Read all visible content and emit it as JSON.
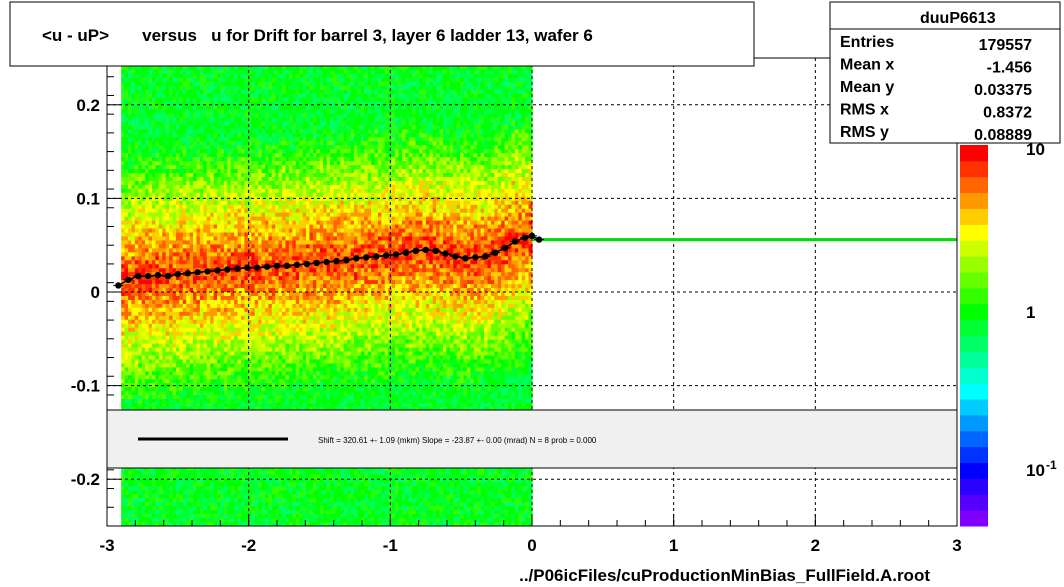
{
  "title": "<u - uP>       versus   u for Drift for barrel 3, layer 6 ladder 13, wafer 6",
  "footer": "../P06icFiles/cuProductionMinBias_FullField.A.root",
  "stats": {
    "name": "duuP6613",
    "rows": [
      {
        "label": "Entries",
        "value": "179557"
      },
      {
        "label": "Mean x",
        "value": "-1.456"
      },
      {
        "label": "Mean y",
        "value": "0.03375"
      },
      {
        "label": "RMS x",
        "value": "0.8372"
      },
      {
        "label": "RMS y",
        "value": "0.08889"
      }
    ]
  },
  "fit_text": "Shift =   320.61 +- 1.09 (mkm) Slope =   -23.87 +- 0.00 (mrad)  N = 8 prob = 0.000",
  "colors": {
    "profile": "#000000",
    "fit_line": "#00dd00",
    "legend_line": "#000000",
    "legend_box": "#f0f0f0",
    "palette": [
      "#7f00ff",
      "#5500ff",
      "#2a00ff",
      "#0000ff",
      "#0033ff",
      "#0066ff",
      "#0099ff",
      "#00ccff",
      "#00ffff",
      "#00ffcc",
      "#00ff99",
      "#00ff66",
      "#00ff33",
      "#00ff00",
      "#33ff00",
      "#66ff00",
      "#99ff00",
      "#ccff00",
      "#ffff00",
      "#ffcc00",
      "#ff9900",
      "#ff6600",
      "#ff3300",
      "#ff0000"
    ]
  },
  "chart_data": {
    "type": "heatmap",
    "title": "<u - uP>       versus   u for Drift for barrel 3, layer 6 ladder 13, wafer 6",
    "xlabel": "../P06icFiles/cuProductionMinBias_FullField.A.root",
    "ylabel": "",
    "xlim": [
      -3,
      3
    ],
    "ylim": [
      -0.25,
      0.25
    ],
    "x_ticks": [
      -3,
      -2,
      -1,
      0,
      1,
      2,
      3
    ],
    "y_ticks": [
      -0.2,
      -0.1,
      0,
      0.1,
      0.2
    ],
    "x_tick_labels": [
      "-3",
      "-2",
      "-1",
      "0",
      "1",
      "2",
      "3"
    ],
    "y_tick_labels": [
      "-0.2",
      "-0.1",
      "0",
      "0.1",
      "0.2"
    ],
    "grid": true,
    "log_z": true,
    "z_tick_labels": [
      "10",
      "1",
      "10"
    ],
    "z_tick_exponents": [
      "",
      "",
      "-1"
    ],
    "data_x_range": [
      -2.9,
      0.0
    ],
    "profile": {
      "x": [
        -2.92,
        -2.85,
        -2.78,
        -2.71,
        -2.64,
        -2.57,
        -2.5,
        -2.43,
        -2.36,
        -2.29,
        -2.22,
        -2.15,
        -2.08,
        -2.01,
        -1.94,
        -1.87,
        -1.8,
        -1.73,
        -1.66,
        -1.59,
        -1.52,
        -1.45,
        -1.38,
        -1.31,
        -1.24,
        -1.17,
        -1.1,
        -1.03,
        -0.96,
        -0.89,
        -0.82,
        -0.75,
        -0.68,
        -0.61,
        -0.54,
        -0.47,
        -0.4,
        -0.33,
        -0.26,
        -0.19,
        -0.12,
        -0.05,
        0.0,
        0.05
      ],
      "y": [
        0.007,
        0.013,
        0.017,
        0.017,
        0.018,
        0.017,
        0.019,
        0.02,
        0.021,
        0.022,
        0.023,
        0.024,
        0.025,
        0.026,
        0.026,
        0.027,
        0.028,
        0.028,
        0.029,
        0.03,
        0.031,
        0.032,
        0.033,
        0.034,
        0.036,
        0.037,
        0.038,
        0.039,
        0.04,
        0.042,
        0.044,
        0.045,
        0.044,
        0.041,
        0.038,
        0.036,
        0.037,
        0.038,
        0.042,
        0.047,
        0.054,
        0.058,
        0.06,
        0.056
      ]
    },
    "fit_line": {
      "x": [
        0.0,
        3.0
      ],
      "y": [
        0.056,
        0.056
      ]
    },
    "legend_entries": []
  }
}
